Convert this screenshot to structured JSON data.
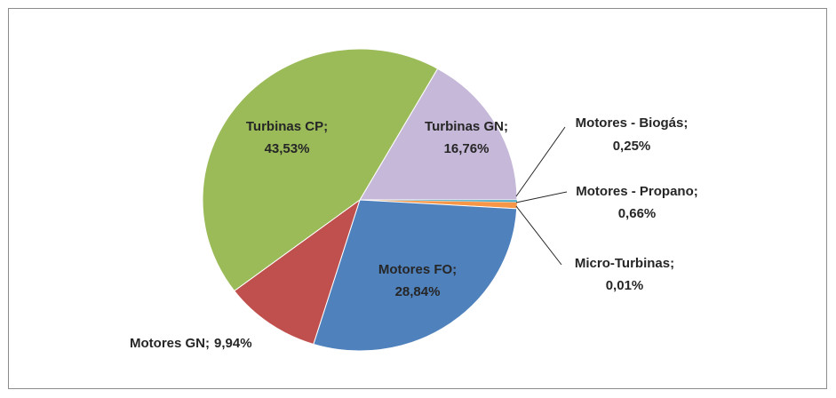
{
  "chart_data": {
    "type": "pie",
    "categories": [
      "Turbinas GN;",
      "Motores - Biogás;",
      "Motores - Propano;",
      "Micro-Turbinas;",
      "Motores FO;",
      "Motores GN;",
      "Turbinas CP;"
    ],
    "values": [
      16.76,
      0.25,
      0.66,
      0.01,
      28.84,
      9.94,
      43.53
    ],
    "value_labels": [
      "16,76%",
      "0,25%",
      "0,66%",
      "0,01%",
      "28,84%",
      "9,94%",
      "43,53%"
    ],
    "colors": [
      "#c6b8d9",
      "#4bacc6",
      "#f79646",
      "#8064a2",
      "#4f81bd",
      "#c0504d",
      "#9bbb59"
    ]
  }
}
